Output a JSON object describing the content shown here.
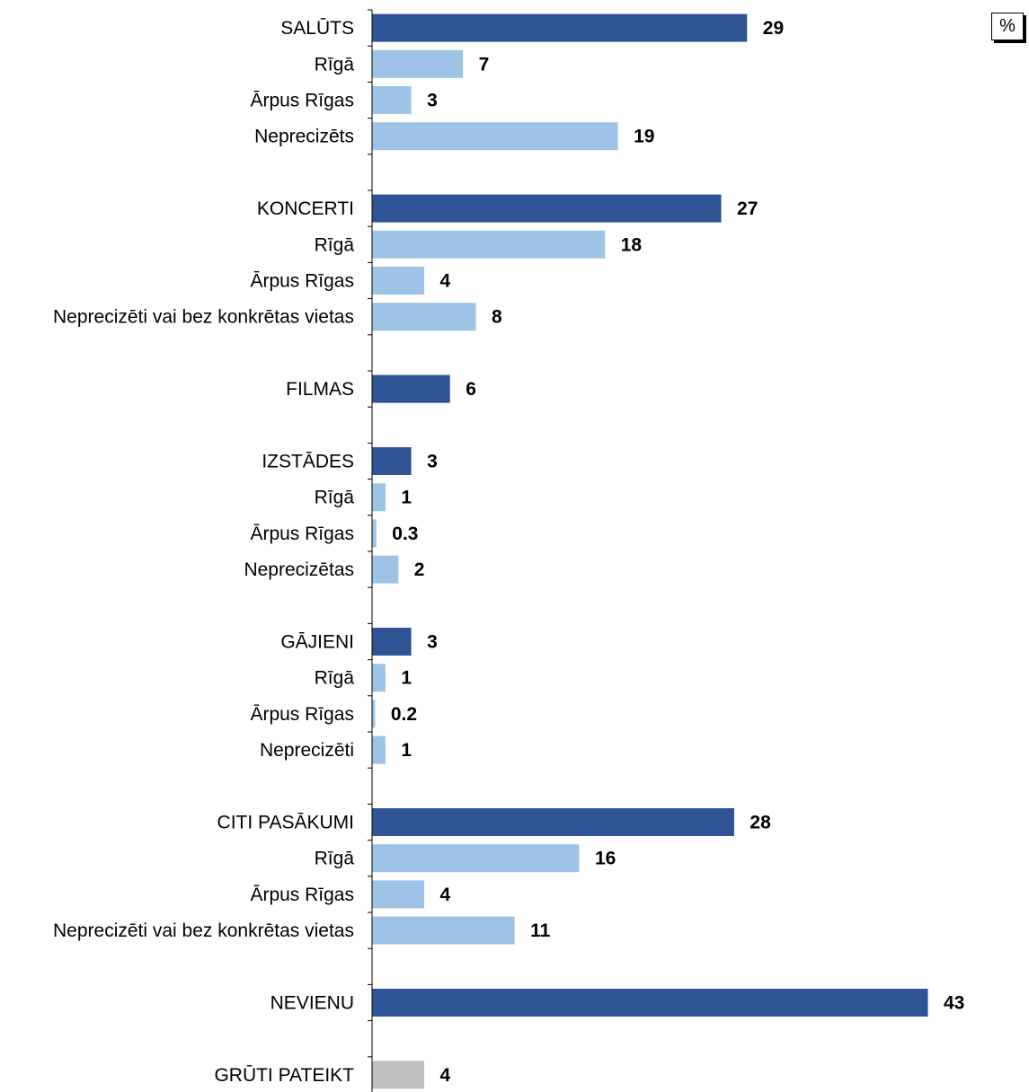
{
  "unit_label": "%",
  "colors": {
    "main": "#2e5496",
    "sub": "#9dc3e6",
    "neutral": "#bfbfbf",
    "axis": "#000000"
  },
  "chart_data": {
    "type": "bar",
    "orientation": "horizontal",
    "xlim": [
      0,
      43
    ],
    "axis_visible": false,
    "grid": false,
    "legend": "none",
    "rows": [
      {
        "label": "SALŪTS",
        "value": 29,
        "value_label": "29",
        "kind": "main"
      },
      {
        "label": "Rīgā",
        "value": 7,
        "value_label": "7",
        "kind": "sub"
      },
      {
        "label": "Ārpus Rīgas",
        "value": 3,
        "value_label": "3",
        "kind": "sub"
      },
      {
        "label": "Neprecizēts",
        "value": 19,
        "value_label": "19",
        "kind": "sub"
      },
      {
        "gap": true
      },
      {
        "label": "KONCERTI",
        "value": 27,
        "value_label": "27",
        "kind": "main"
      },
      {
        "label": "Rīgā",
        "value": 18,
        "value_label": "18",
        "kind": "sub"
      },
      {
        "label": "Ārpus Rīgas",
        "value": 4,
        "value_label": "4",
        "kind": "sub"
      },
      {
        "label": "Neprecizēti vai bez konkrētas vietas",
        "value": 8,
        "value_label": "8",
        "kind": "sub"
      },
      {
        "gap": true
      },
      {
        "label": "FILMAS",
        "value": 6,
        "value_label": "6",
        "kind": "main"
      },
      {
        "gap": true
      },
      {
        "label": "IZSTĀDES",
        "value": 3,
        "value_label": "3",
        "kind": "main"
      },
      {
        "label": "Rīgā",
        "value": 1,
        "value_label": "1",
        "kind": "sub"
      },
      {
        "label": "Ārpus Rīgas",
        "value": 0.3,
        "value_label": "0.3",
        "kind": "sub"
      },
      {
        "label": "Neprecizētas",
        "value": 2,
        "value_label": "2",
        "kind": "sub"
      },
      {
        "gap": true
      },
      {
        "label": "GĀJIENI",
        "value": 3,
        "value_label": "3",
        "kind": "main"
      },
      {
        "label": "Rīgā",
        "value": 1,
        "value_label": "1",
        "kind": "sub"
      },
      {
        "label": "Ārpus Rīgas",
        "value": 0.2,
        "value_label": "0.2",
        "kind": "sub"
      },
      {
        "label": "Neprecizēti",
        "value": 1,
        "value_label": "1",
        "kind": "sub"
      },
      {
        "gap": true
      },
      {
        "label": "CITI PASĀKUMI",
        "value": 28,
        "value_label": "28",
        "kind": "main"
      },
      {
        "label": "Rīgā",
        "value": 16,
        "value_label": "16",
        "kind": "sub"
      },
      {
        "label": "Ārpus Rīgas",
        "value": 4,
        "value_label": "4",
        "kind": "sub"
      },
      {
        "label": "Neprecizēti vai bez konkrētas vietas",
        "value": 11,
        "value_label": "11",
        "kind": "sub"
      },
      {
        "gap": true
      },
      {
        "label": "NEVIENU",
        "value": 43,
        "value_label": "43",
        "kind": "main"
      },
      {
        "gap": true
      },
      {
        "label": "GRŪTI PATEIKT",
        "value": 4,
        "value_label": "4",
        "kind": "neutral"
      }
    ]
  }
}
